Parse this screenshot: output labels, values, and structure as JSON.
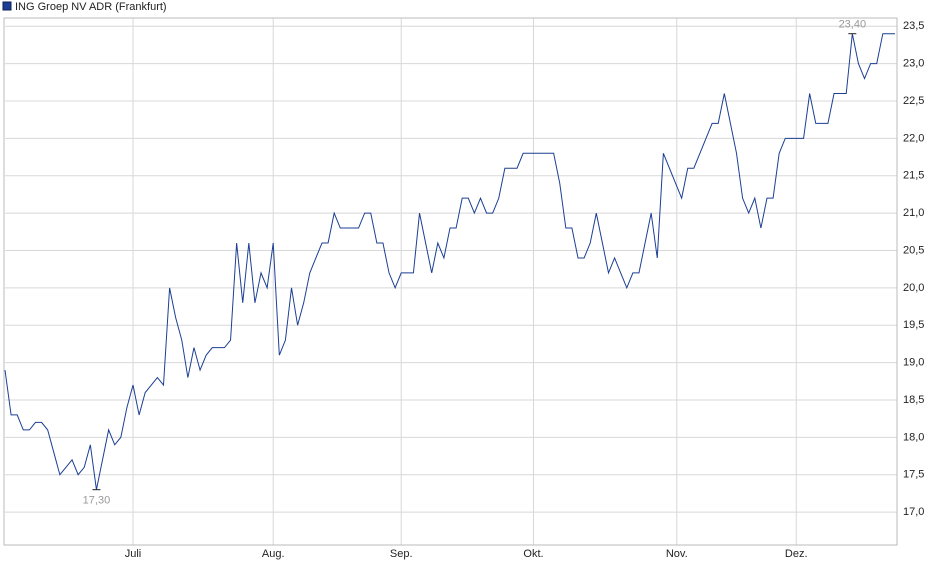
{
  "chart_data": {
    "type": "line",
    "series": [
      {
        "name": "ING Groep NV ADR (Frankfurt)",
        "color": "#1c3f94",
        "values": [
          18.9,
          18.3,
          18.3,
          18.1,
          18.1,
          18.2,
          18.2,
          18.1,
          17.8,
          17.5,
          17.6,
          17.7,
          17.5,
          17.6,
          17.9,
          17.3,
          17.7,
          18.1,
          17.9,
          18.0,
          18.4,
          18.7,
          18.3,
          18.6,
          18.7,
          18.8,
          18.7,
          20.0,
          19.6,
          19.3,
          18.8,
          19.2,
          18.9,
          19.1,
          19.2,
          19.2,
          19.2,
          19.3,
          20.6,
          19.8,
          20.6,
          19.8,
          20.2,
          20.0,
          20.6,
          19.1,
          19.3,
          20.0,
          19.5,
          19.8,
          20.2,
          20.4,
          20.6,
          20.6,
          21.0,
          20.8,
          20.8,
          20.8,
          20.8,
          21.0,
          21.0,
          20.6,
          20.6,
          20.2,
          20.0,
          20.2,
          20.2,
          20.2,
          21.0,
          20.6,
          20.2,
          20.6,
          20.4,
          20.8,
          20.8,
          21.2,
          21.2,
          21.0,
          21.2,
          21.0,
          21.0,
          21.2,
          21.6,
          21.6,
          21.6,
          21.8,
          21.8,
          21.8,
          21.8,
          21.8,
          21.8,
          21.4,
          20.8,
          20.8,
          20.4,
          20.4,
          20.6,
          21.0,
          20.6,
          20.2,
          20.4,
          20.2,
          20.0,
          20.2,
          20.2,
          20.6,
          21.0,
          20.4,
          21.8,
          21.6,
          21.4,
          21.2,
          21.6,
          21.6,
          21.8,
          22.0,
          22.2,
          22.2,
          22.6,
          22.2,
          21.8,
          21.2,
          21.0,
          21.2,
          20.8,
          21.2,
          21.2,
          21.8,
          22.0,
          22.0,
          22.0,
          22.0,
          22.6,
          22.2,
          22.2,
          22.2,
          22.6,
          22.6,
          22.6,
          23.4,
          23.0,
          22.8,
          23.0,
          23.0,
          23.4,
          23.4,
          23.4
        ]
      }
    ],
    "xlim": [
      0,
      146
    ],
    "xticks": [
      {
        "value": 21,
        "label": "Juli"
      },
      {
        "value": 44,
        "label": "Aug."
      },
      {
        "value": 65,
        "label": "Sep."
      },
      {
        "value": 86.7,
        "label": "Okt."
      },
      {
        "value": 110.2,
        "label": "Nov."
      },
      {
        "value": 129.8,
        "label": "Dez."
      }
    ],
    "ylim": [
      16.56,
      23.61
    ],
    "yticks": [
      {
        "value": 17.0,
        "label": "17,0"
      },
      {
        "value": 17.5,
        "label": "17,5"
      },
      {
        "value": 18.0,
        "label": "18,0"
      },
      {
        "value": 18.5,
        "label": "18,5"
      },
      {
        "value": 19.0,
        "label": "19,0"
      },
      {
        "value": 19.5,
        "label": "19,5"
      },
      {
        "value": 20.0,
        "label": "20,0"
      },
      {
        "value": 20.5,
        "label": "20,5"
      },
      {
        "value": 21.0,
        "label": "21,0"
      },
      {
        "value": 21.5,
        "label": "21,5"
      },
      {
        "value": 22.0,
        "label": "22,0"
      },
      {
        "value": 22.5,
        "label": "22,5"
      },
      {
        "value": 23.0,
        "label": "23,0"
      },
      {
        "value": 23.5,
        "label": "23,5"
      }
    ],
    "annotations": [
      {
        "text": "17,30",
        "point": 15
      },
      {
        "text": "23,40",
        "point": 139
      }
    ],
    "grid": true,
    "legend": "top-left"
  }
}
